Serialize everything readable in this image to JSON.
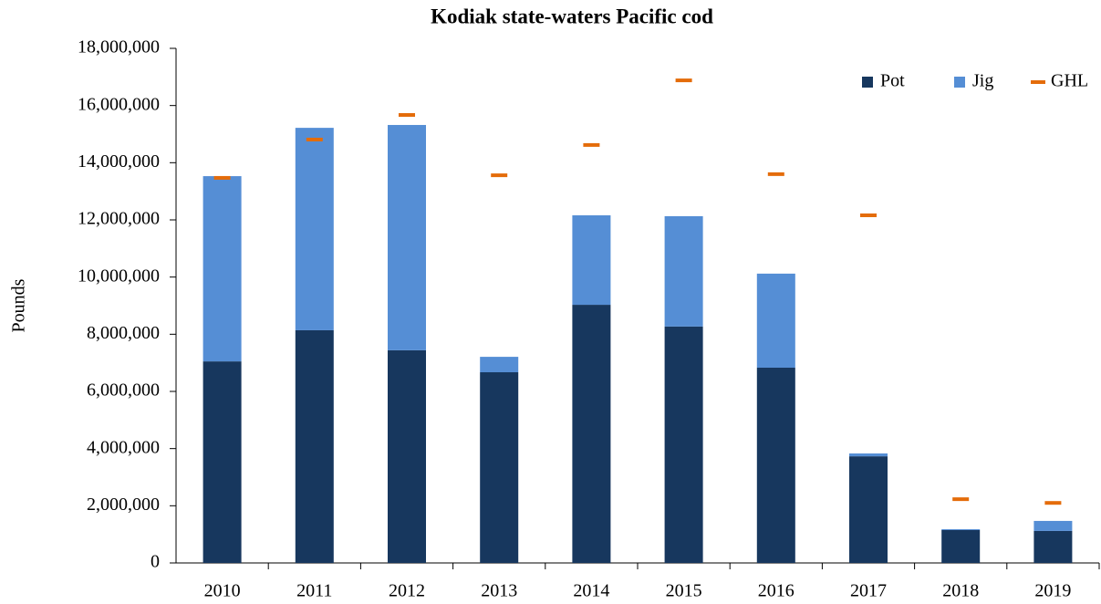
{
  "chart_data": {
    "type": "bar",
    "stacked": true,
    "title": "Kodiak state-waters Pacific cod",
    "y_label": "Pounds",
    "categories": [
      "2010",
      "2011",
      "2012",
      "2013",
      "2014",
      "2015",
      "2016",
      "2017",
      "2018",
      "2019"
    ],
    "series": [
      {
        "name": "Pot",
        "color": "#17375e",
        "type": "bar",
        "values": [
          7050000,
          8140000,
          7440000,
          6670000,
          9030000,
          8270000,
          6830000,
          3730000,
          1150000,
          1120000
        ]
      },
      {
        "name": "Jig",
        "color": "#558ed5",
        "type": "bar",
        "values": [
          6480000,
          7080000,
          7880000,
          540000,
          3130000,
          3860000,
          3290000,
          100000,
          30000,
          350000
        ]
      },
      {
        "name": "GHL",
        "color": "#e46c0a",
        "type": "marker",
        "values": [
          13470000,
          14810000,
          15670000,
          13560000,
          14620000,
          16880000,
          13600000,
          12160000,
          2230000,
          2100000
        ]
      }
    ],
    "ylim": [
      0,
      18000000
    ],
    "yticks": [
      0,
      {
        "value": 2000000,
        "label": "2,000,000"
      },
      {
        "value": 4000000,
        "label": "4,000,000"
      },
      {
        "value": 6000000,
        "label": "6,000,000"
      },
      {
        "value": 8000000,
        "label": "8,000,000"
      },
      {
        "value": 10000000,
        "label": "10,000,000"
      },
      {
        "value": 12000000,
        "label": "12,000,000"
      },
      {
        "value": 14000000,
        "label": "14,000,000"
      },
      {
        "value": 16000000,
        "label": "16,000,000"
      },
      {
        "value": 18000000,
        "label": "18,000,000"
      }
    ],
    "grid": false,
    "legend": "top-right"
  }
}
